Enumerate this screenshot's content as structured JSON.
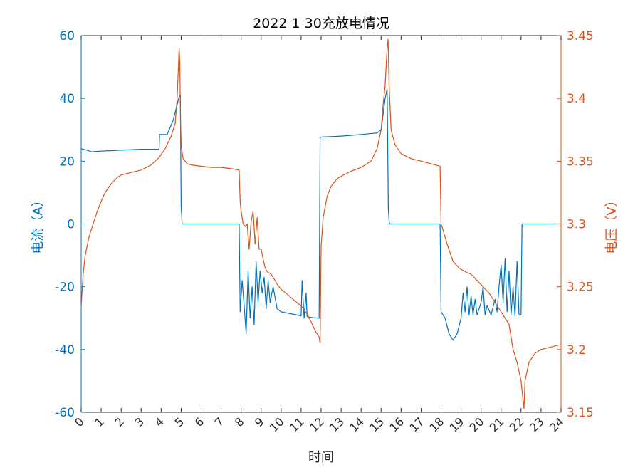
{
  "chart_data": {
    "type": "line",
    "title": "2022   1   30充放电情况",
    "xlabel": "时间",
    "ylabel_left": "电流（A）",
    "ylabel_right": "电压（V）",
    "xlim": [
      0,
      24
    ],
    "ylim_left": [
      -60,
      60
    ],
    "ylim_right": [
      3.15,
      3.45
    ],
    "x_ticks": [
      "0",
      "1",
      "2",
      "3",
      "4",
      "5",
      "6",
      "7",
      "8",
      "9",
      "10",
      "11",
      "12",
      "13",
      "14",
      "15",
      "16",
      "17",
      "18",
      "19",
      "20",
      "21",
      "22",
      "23",
      "24"
    ],
    "y_ticks_left": [
      "60",
      "40",
      "20",
      "0",
      "-20",
      "-40",
      "-60"
    ],
    "y_ticks_right": [
      "3.45",
      "3.4",
      "3.35",
      "3.3",
      "3.25",
      "3.2",
      "3.15"
    ],
    "grid": false,
    "colors": {
      "current": "#0072BD",
      "voltage": "#D95319",
      "axis": "#262626"
    },
    "series": [
      {
        "name": "电流",
        "axis": "left",
        "x": [
          0,
          0.3,
          0.5,
          1,
          2,
          3,
          3.9,
          3.92,
          4.3,
          4.6,
          4.8,
          4.92,
          4.96,
          5.0,
          5.05,
          5.1,
          6,
          7,
          7.9,
          7.95,
          8.05,
          8.15,
          8.25,
          8.35,
          8.45,
          8.55,
          8.65,
          8.75,
          8.85,
          8.95,
          9.05,
          9.15,
          9.25,
          9.35,
          9.45,
          9.6,
          9.8,
          10,
          10.4,
          10.8,
          11,
          11.05,
          11.15,
          11.25,
          11.3,
          11.5,
          11.9,
          11.95,
          12,
          12.5,
          13,
          14,
          14.8,
          15.0,
          15.2,
          15.3,
          15.32,
          15.36,
          15.4,
          15.42,
          15.5,
          16,
          17,
          17.95,
          18.0,
          18.2,
          18.4,
          18.6,
          18.8,
          19.0,
          19.1,
          19.2,
          19.3,
          19.4,
          19.5,
          19.6,
          19.7,
          19.8,
          19.9,
          20.0,
          20.1,
          20.2,
          20.3,
          20.5,
          20.7,
          20.8,
          20.9,
          21.0,
          21.1,
          21.2,
          21.3,
          21.4,
          21.5,
          21.6,
          21.7,
          21.8,
          21.9,
          22.0,
          22.05,
          22.1,
          23,
          24
        ],
        "y": [
          24,
          23.5,
          23,
          23.2,
          23.5,
          23.8,
          23.8,
          28.5,
          28.5,
          33,
          38,
          41,
          41,
          6,
          0,
          0,
          0,
          0,
          0,
          -28,
          -18,
          -26,
          -35,
          -15,
          -30,
          -20,
          -32,
          -12,
          -25,
          -15,
          -22,
          -17,
          -27,
          -18,
          -25,
          -20,
          -27,
          -28,
          -28.5,
          -29,
          -29.3,
          -18,
          -30,
          -22,
          -29.5,
          -29.8,
          -30,
          27.5,
          27.7,
          27.8,
          28,
          28.5,
          29,
          30,
          40,
          43,
          33,
          5,
          1,
          0,
          0,
          0,
          0,
          0,
          -28,
          -30,
          -35,
          -37,
          -35,
          -30,
          -22,
          -28,
          -20,
          -29,
          -23,
          -29,
          -24,
          -29,
          -27,
          -25,
          -20,
          -29,
          -26,
          -29,
          -24,
          -28,
          -20,
          -13,
          -25,
          -11,
          -28,
          -15,
          -29,
          -20,
          -29.5,
          -12,
          -29,
          -29,
          0,
          0,
          0,
          0
        ]
      },
      {
        "name": "电压",
        "axis": "right",
        "x": [
          0,
          0.1,
          0.2,
          0.4,
          0.6,
          0.8,
          1.0,
          1.2,
          1.5,
          1.8,
          2.0,
          2.5,
          3.0,
          3.5,
          3.9,
          4.2,
          4.5,
          4.7,
          4.8,
          4.9,
          4.93,
          4.97,
          5.0,
          5.05,
          5.1,
          5.3,
          5.5,
          6,
          6.5,
          7,
          7.5,
          7.9,
          7.95,
          8.0,
          8.1,
          8.2,
          8.3,
          8.4,
          8.5,
          8.6,
          8.7,
          8.8,
          8.9,
          9.0,
          9.1,
          9.2,
          9.3,
          9.5,
          9.7,
          9.8,
          10,
          10.3,
          10.6,
          10.9,
          11.1,
          11.3,
          11.5,
          11.7,
          11.9,
          11.95,
          12.0,
          12.1,
          12.3,
          12.5,
          12.8,
          13,
          13.5,
          14,
          14.5,
          14.8,
          15.0,
          15.1,
          15.2,
          15.3,
          15.35,
          15.4,
          15.5,
          15.7,
          16,
          16.5,
          17,
          17.5,
          17.95,
          18.0,
          18.1,
          18.3,
          18.6,
          18.9,
          19.2,
          19.5,
          19.8,
          20.1,
          20.4,
          20.6,
          20.8,
          21.0,
          21.2,
          21.4,
          21.6,
          21.8,
          22.0,
          22.1,
          22.15,
          22.2,
          22.4,
          22.7,
          23,
          23.5,
          24
        ],
        "y": [
          3.235,
          3.26,
          3.275,
          3.29,
          3.3,
          3.31,
          3.318,
          3.325,
          3.332,
          3.337,
          3.339,
          3.341,
          3.343,
          3.347,
          3.353,
          3.36,
          3.37,
          3.38,
          3.4,
          3.44,
          3.43,
          3.38,
          3.365,
          3.357,
          3.352,
          3.348,
          3.347,
          3.346,
          3.345,
          3.345,
          3.344,
          3.343,
          3.318,
          3.31,
          3.3,
          3.298,
          3.3,
          3.28,
          3.302,
          3.31,
          3.284,
          3.305,
          3.28,
          3.28,
          3.272,
          3.265,
          3.262,
          3.26,
          3.255,
          3.252,
          3.248,
          3.244,
          3.24,
          3.236,
          3.233,
          3.228,
          3.222,
          3.215,
          3.21,
          3.205,
          3.282,
          3.305,
          3.322,
          3.33,
          3.336,
          3.338,
          3.342,
          3.345,
          3.35,
          3.36,
          3.375,
          3.395,
          3.41,
          3.44,
          3.447,
          3.41,
          3.375,
          3.363,
          3.356,
          3.352,
          3.35,
          3.348,
          3.346,
          3.3,
          3.295,
          3.284,
          3.27,
          3.265,
          3.262,
          3.26,
          3.255,
          3.25,
          3.245,
          3.24,
          3.235,
          3.23,
          3.225,
          3.22,
          3.2,
          3.19,
          3.175,
          3.16,
          3.153,
          3.175,
          3.19,
          3.197,
          3.2,
          3.202,
          3.204
        ]
      }
    ]
  }
}
